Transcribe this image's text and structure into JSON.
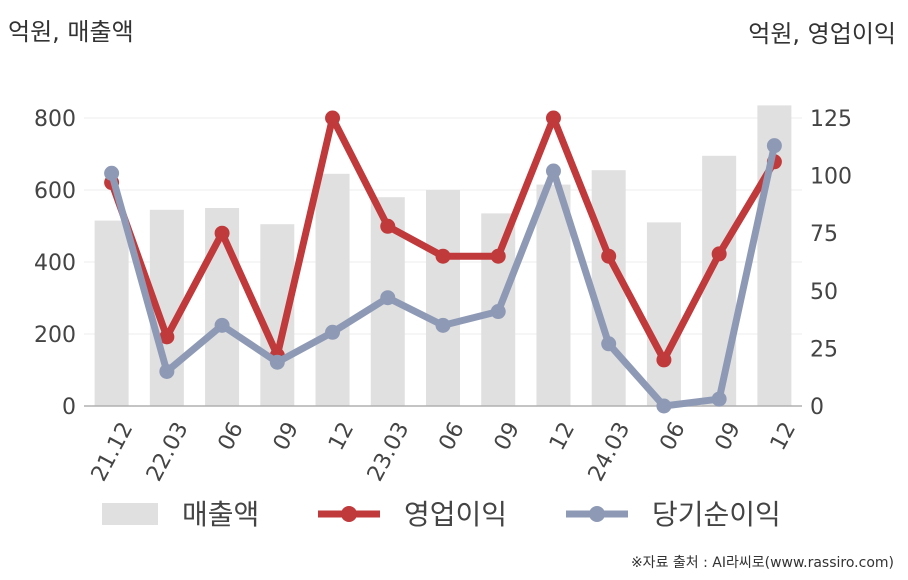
{
  "chart_data": {
    "type": "bar+line",
    "categories": [
      "21.12",
      "22.03",
      "06",
      "09",
      "12",
      "23.03",
      "06",
      "09",
      "12",
      "24.03",
      "06",
      "09",
      "12"
    ],
    "left_axis_label": "억원, 매출액",
    "right_axis_label": "억원, 영업이익",
    "left_ylim": [
      0,
      800
    ],
    "left_ticks": [
      0,
      200,
      400,
      600,
      800
    ],
    "right_ylim": [
      0,
      125
    ],
    "right_ticks": [
      0,
      25,
      50,
      75,
      100,
      125
    ],
    "series": [
      {
        "name": "매출액",
        "type": "bar",
        "axis": "left",
        "color": "#e0e0e0",
        "values": [
          515,
          545,
          550,
          505,
          645,
          580,
          600,
          535,
          615,
          655,
          510,
          695,
          835
        ]
      },
      {
        "name": "영업이익",
        "type": "line",
        "axis": "right",
        "color": "#c0393b",
        "values": [
          97,
          30,
          75,
          22,
          125,
          78,
          65,
          65,
          125,
          65,
          20,
          66,
          106
        ]
      },
      {
        "name": "당기순이익",
        "type": "line",
        "axis": "right",
        "color": "#8e9ab5",
        "values": [
          101,
          15,
          35,
          19,
          32,
          47,
          35,
          41,
          102,
          27,
          0,
          3,
          113
        ]
      }
    ],
    "grid": true,
    "legend_position": "bottom"
  },
  "source_text": "※자료 출처 : AI라씨로(www.rassiro.com)"
}
